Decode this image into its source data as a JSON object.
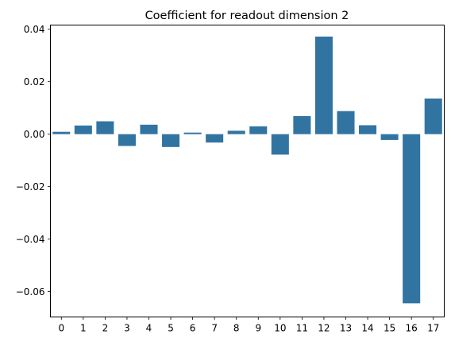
{
  "chart_data": {
    "type": "bar",
    "title": "Coefficient for readout dimension 2",
    "xlabel": "",
    "ylabel": "",
    "categories": [
      "0",
      "1",
      "2",
      "3",
      "4",
      "5",
      "6",
      "7",
      "8",
      "9",
      "10",
      "11",
      "12",
      "13",
      "14",
      "15",
      "16",
      "17"
    ],
    "values": [
      0.0009,
      0.0033,
      0.0049,
      -0.0045,
      0.0036,
      -0.0049,
      0.0006,
      -0.0032,
      0.0013,
      0.003,
      -0.0078,
      0.0069,
      0.0372,
      0.0088,
      0.0034,
      -0.0022,
      -0.0645,
      0.0136
    ],
    "ylim": [
      -0.0697,
      0.0416
    ],
    "yticks": [
      -0.06,
      -0.04,
      -0.02,
      0.0,
      0.02,
      0.04
    ],
    "ytick_labels": [
      "−0.06",
      "−0.04",
      "−0.02",
      "0.00",
      "0.02",
      "0.04"
    ],
    "grid": false,
    "legend": "none",
    "bar_color": "#3274a1",
    "axis_color": "#000000"
  }
}
